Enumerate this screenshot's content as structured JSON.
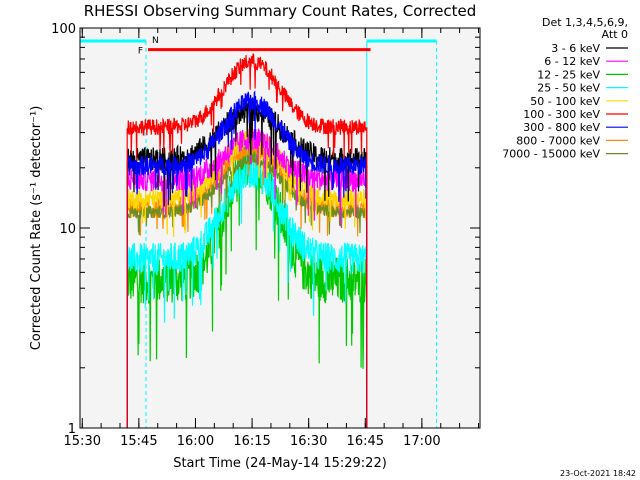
{
  "chart_data": {
    "type": "line",
    "title": "RHESSI Observing Summary Count Rates, Corrected",
    "xlabel": "Start Time (24-May-14 15:29:22)",
    "ylabel": "Corrected Count Rate (s⁻¹ detector⁻¹)",
    "y_scale": "log",
    "ylim": [
      1,
      100
    ],
    "xlim_minutes": [
      0,
      106
    ],
    "x_ticks": [
      {
        "label": "15:30",
        "minute": 0.6
      },
      {
        "label": "15:45",
        "minute": 15.6
      },
      {
        "label": "16:00",
        "minute": 30.6
      },
      {
        "label": "16:15",
        "minute": 45.6
      },
      {
        "label": "16:30",
        "minute": 60.6
      },
      {
        "label": "16:45",
        "minute": 75.6
      },
      {
        "label": "17:00",
        "minute": 90.6
      }
    ],
    "y_ticks": [
      {
        "label": "1",
        "value": 1
      },
      {
        "label": "10",
        "value": 10
      },
      {
        "label": "100",
        "value": 100
      }
    ],
    "legend_header": [
      "Det 1,3,4,5,6,9,",
      "Att 0"
    ],
    "data_start_minute": 12.5,
    "data_end_minute": 76,
    "peak_minute": 45.5,
    "series": [
      {
        "name": "3 - 6 keV",
        "color": "#000000",
        "baseline": 22,
        "peak": 39,
        "width": 10,
        "noise": 0.06
      },
      {
        "name": "6 - 12 keV",
        "color": "#ff00ff",
        "baseline": 17.5,
        "peak": 28,
        "width": 9,
        "noise": 0.06
      },
      {
        "name": "12 - 25 keV",
        "color": "#00c800",
        "baseline": 5.5,
        "peak": 21,
        "width": 8,
        "noise": 0.12
      },
      {
        "name": "25 - 50 keV",
        "color": "#00ffff",
        "baseline": 7,
        "peak": 19,
        "width": 9,
        "noise": 0.08
      },
      {
        "name": "50 - 100 keV",
        "color": "#ffd700",
        "baseline": 14,
        "peak": 28,
        "width": 10,
        "noise": 0.05
      },
      {
        "name": "100 - 300 keV",
        "color": "#ff0000",
        "baseline": 32,
        "peak": 68,
        "width": 9,
        "noise": 0.04
      },
      {
        "name": "300 - 800 keV",
        "color": "#0000ff",
        "baseline": 20.5,
        "peak": 43,
        "width": 9,
        "noise": 0.05
      },
      {
        "name": "800 - 7000 keV",
        "color": "#ff8c00",
        "baseline": 12.5,
        "peak": 25,
        "width": 10,
        "noise": 0.05
      },
      {
        "name": "7000 - 15000 keV",
        "color": "#6b8e23",
        "baseline": 12,
        "peak": 22,
        "width": 10,
        "noise": 0.03
      }
    ],
    "annotations": {
      "flare_bar": {
        "label": "F",
        "start_minute": 18,
        "end_minute": 77,
        "value": 78,
        "color": "#ff0000"
      },
      "night_marker": {
        "label": "N",
        "color": "#00ffff"
      },
      "night_intervals": [
        {
          "start_minute": 0,
          "end_minute": 17.5
        },
        {
          "start_minute": 76,
          "end_minute": 94.5
        }
      ],
      "timestamp": "23-Oct-2021 18:42"
    }
  }
}
